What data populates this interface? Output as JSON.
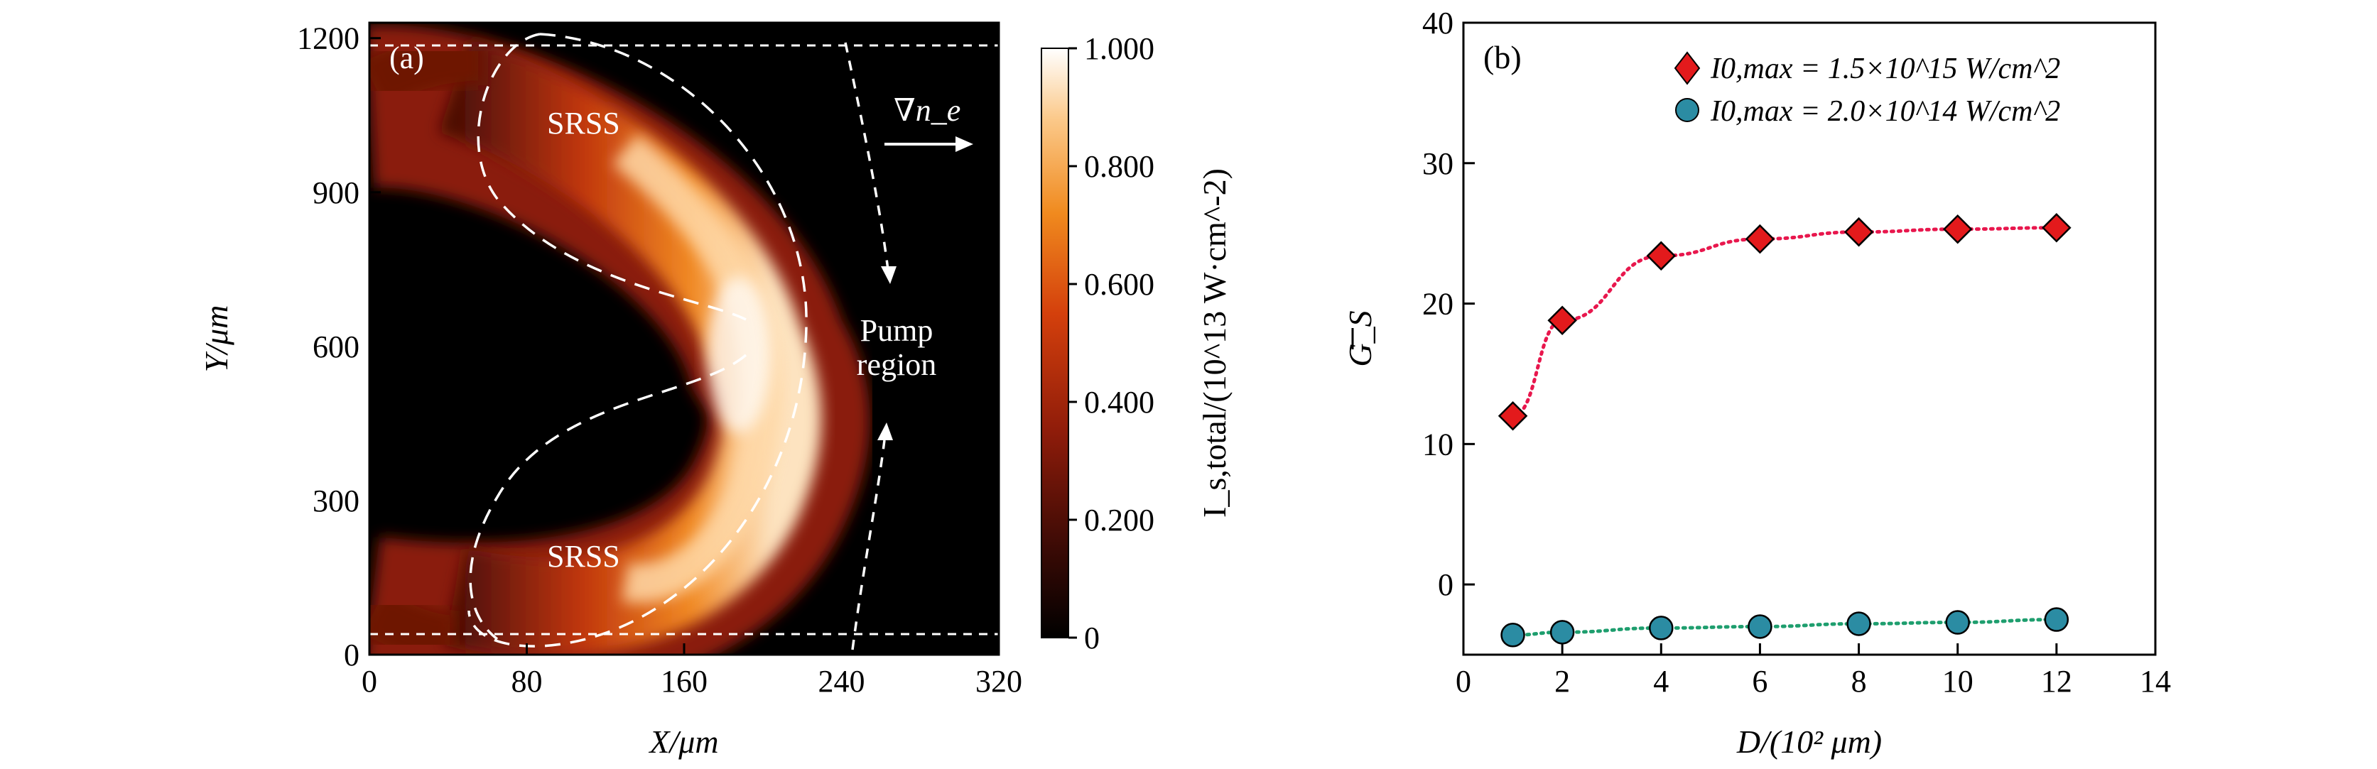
{
  "chart_data": [
    {
      "type": "heatmap",
      "panel_label": "(a)",
      "xlabel": "X/μm",
      "ylabel": "Y/μm",
      "xlim": [
        0,
        320
      ],
      "ylim": [
        0,
        1230
      ],
      "xticks": [
        "0",
        "80",
        "160",
        "240",
        "320"
      ],
      "yticks": [
        "0",
        "300",
        "600",
        "900",
        "1200"
      ],
      "colorbar": {
        "label": "I_s,total/(10^13 W·cm^-2)",
        "ticks": [
          "0",
          "0.200",
          "0.400",
          "0.600",
          "0.800",
          "1.000"
        ],
        "range": [
          0,
          1.0
        ],
        "colormap": "black-red-orange-white"
      },
      "annotations": {
        "srss_upper": "SRSS",
        "srss_lower": "SRSS",
        "gradient": "∇n_e",
        "pump_line1": "Pump",
        "pump_line2": "region"
      },
      "reference_lines_y": [
        40,
        1190
      ]
    },
    {
      "type": "scatter",
      "panel_label": "(b)",
      "xlabel": "D/(10² μm)",
      "ylabel": "G_S",
      "xlim": [
        0,
        14
      ],
      "ylim": [
        -5,
        40
      ],
      "xticks": [
        "0",
        "2",
        "4",
        "6",
        "8",
        "10",
        "12",
        "14"
      ],
      "yticks": [
        "0",
        "10",
        "20",
        "30",
        "40"
      ],
      "legend_position": "top-right",
      "x": [
        1,
        2,
        4,
        6,
        8,
        10,
        12
      ],
      "series": [
        {
          "name": "I0,max = 1.5×10^15 W/cm^2",
          "marker": "diamond",
          "color": "#e31a1c",
          "line_color": "#e8174d",
          "values": [
            12.0,
            18.8,
            23.4,
            24.6,
            25.1,
            25.3,
            25.4
          ]
        },
        {
          "name": "I0,max = 2.0×10^14 W/cm^2",
          "marker": "circle",
          "color": "#2b8ca3",
          "line_color": "#1e9e6e",
          "values": [
            -3.6,
            -3.4,
            -3.1,
            -3.0,
            -2.8,
            -2.7,
            -2.5
          ]
        }
      ]
    }
  ]
}
